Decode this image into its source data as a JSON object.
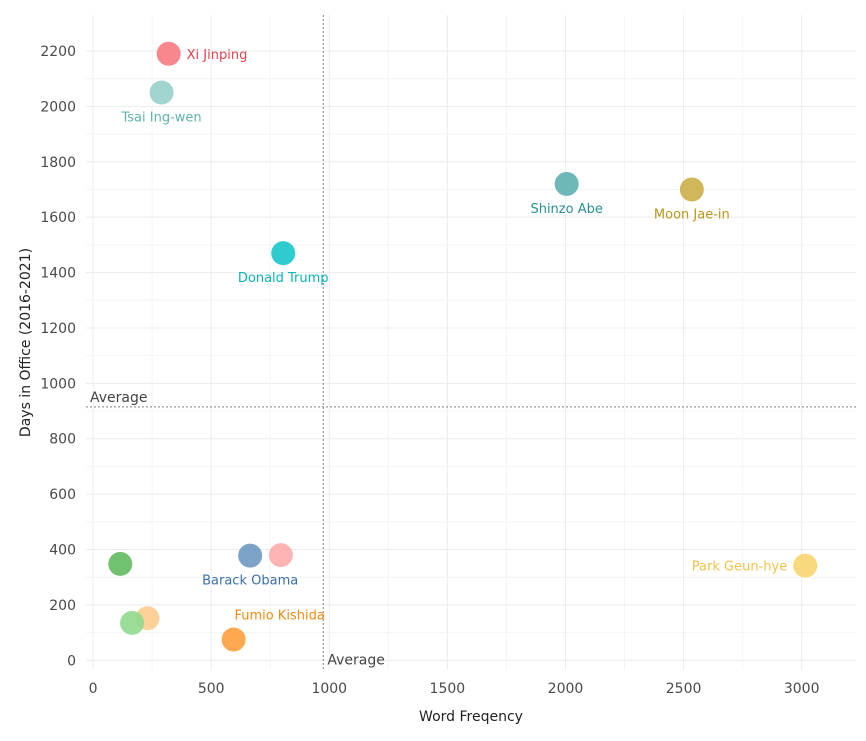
{
  "chart_data": {
    "type": "scatter",
    "xlabel": "Word Freqency",
    "ylabel": "Days in Office (2016-2021)",
    "xlim": [
      -30,
      3230
    ],
    "ylim": [
      -35,
      2330
    ],
    "xticks": [
      0,
      500,
      1000,
      1500,
      2000,
      2500,
      3000
    ],
    "yticks": [
      0,
      200,
      400,
      600,
      800,
      1000,
      1200,
      1400,
      1600,
      1800,
      2000,
      2200
    ],
    "grid": true,
    "legend": "none",
    "average_x": 975,
    "average_y": 915,
    "average_label": "Average",
    "points": [
      {
        "label": "Xi Jinping",
        "x": 320,
        "y": 2190,
        "color": "#f8767d",
        "label_pos": "right"
      },
      {
        "label": "Tsai Ing-wen",
        "x": 290,
        "y": 2050,
        "color": "#96cfc9",
        "label_pos": "below"
      },
      {
        "label": "Shinzo Abe",
        "x": 2005,
        "y": 1720,
        "color": "#5aaeae",
        "label_pos": "below"
      },
      {
        "label": "Moon Jae-in",
        "x": 2535,
        "y": 1700,
        "color": "#c9ad42",
        "label_pos": "below"
      },
      {
        "label": "Donald Trump",
        "x": 805,
        "y": 1470,
        "color": "#12c5c8",
        "label_pos": "below"
      },
      {
        "label": "Barack Obama",
        "x": 665,
        "y": 378,
        "color": "#6b95c0",
        "label_pos": "below"
      },
      {
        "label": "",
        "x": 795,
        "y": 380,
        "color": "#ffaaaa",
        "label_pos": "none"
      },
      {
        "label": "",
        "x": 115,
        "y": 348,
        "color": "#5cb85c",
        "label_pos": "none"
      },
      {
        "label": "Park Geun-hye",
        "x": 3015,
        "y": 342,
        "color": "#f7d46b",
        "label_pos": "left"
      },
      {
        "label": "",
        "x": 230,
        "y": 152,
        "color": "#ffcb8a",
        "label_pos": "none"
      },
      {
        "label": "",
        "x": 165,
        "y": 135,
        "color": "#8cd98c",
        "label_pos": "none"
      },
      {
        "label": "Fumio Kishida",
        "x": 595,
        "y": 75,
        "color": "#ff9c38",
        "label_pos": "above-right"
      }
    ],
    "label_colors": {
      "Xi Jinping": "#e5424d",
      "Tsai Ing-wen": "#5fb3aa",
      "Shinzo Abe": "#2a8f90",
      "Moon Jae-in": "#b8961a",
      "Donald Trump": "#0bb3b6",
      "Barack Obama": "#3d6fa6",
      "Park Geun-hye": "#f0c24a",
      "Fumio Kishida": "#f08a12"
    }
  }
}
